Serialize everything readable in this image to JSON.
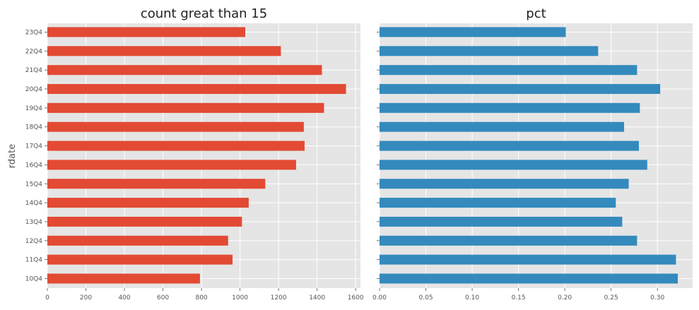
{
  "chart_data": [
    {
      "type": "bar",
      "orientation": "horizontal",
      "title": "count great than 15",
      "ylabel": "rdate",
      "xlabel": "",
      "categories": [
        "10Q4",
        "11Q4",
        "12Q4",
        "13Q4",
        "14Q4",
        "15Q4",
        "16Q4",
        "17Q4",
        "18Q4",
        "19Q4",
        "20Q4",
        "21Q4",
        "22Q4",
        "23Q4"
      ],
      "values": [
        792,
        961,
        938,
        1010,
        1045,
        1131,
        1291,
        1335,
        1331,
        1436,
        1550,
        1425,
        1212,
        1027
      ],
      "xlim": [
        0,
        1625
      ],
      "xticks": [
        0,
        200,
        400,
        600,
        800,
        1000,
        1200,
        1400,
        1600
      ],
      "xtick_labels": [
        "0",
        "200",
        "400",
        "600",
        "800",
        "1000",
        "1200",
        "1400",
        "1600"
      ],
      "color": "#E24A33",
      "grid": true
    },
    {
      "type": "bar",
      "orientation": "horizontal",
      "title": "pct",
      "ylabel": "",
      "xlabel": "",
      "categories": [
        "10Q4",
        "11Q4",
        "12Q4",
        "13Q4",
        "14Q4",
        "15Q4",
        "16Q4",
        "17Q4",
        "18Q4",
        "19Q4",
        "20Q4",
        "21Q4",
        "22Q4",
        "23Q4"
      ],
      "values": [
        0.322,
        0.32,
        0.278,
        0.262,
        0.255,
        0.269,
        0.289,
        0.28,
        0.264,
        0.281,
        0.303,
        0.278,
        0.236,
        0.201
      ],
      "xlim": [
        0,
        0.338
      ],
      "xticks": [
        0,
        0.05,
        0.1,
        0.15,
        0.2,
        0.25,
        0.3
      ],
      "xtick_labels": [
        "0.00",
        "0.05",
        "0.10",
        "0.15",
        "0.20",
        "0.25",
        "0.30"
      ],
      "color": "#348ABD",
      "grid": true
    }
  ],
  "style": {
    "panel_bg": "#E5E5E5",
    "grid_color": "#FFFFFF"
  }
}
